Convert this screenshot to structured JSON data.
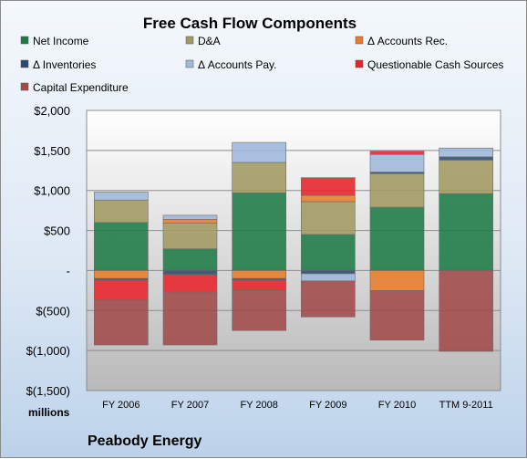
{
  "chart_data": {
    "type": "bar",
    "stacked": true,
    "title": "Free Cash Flow Components",
    "unit_label": "millions",
    "company": "Peabody Energy",
    "categories": [
      "FY 2006",
      "FY 2007",
      "FY 2008",
      "FY 2009",
      "FY 2010",
      "TTM 9-2011"
    ],
    "y_tick_labels": [
      "$2,000",
      "$1,500",
      "$1,000",
      "$500",
      "-",
      "$(500)",
      "$(1,000)",
      "$(1,500)"
    ],
    "y_tick_values": [
      2000,
      1500,
      1000,
      500,
      0,
      -500,
      -1000,
      -1500
    ],
    "ylim": [
      -1500,
      2000
    ],
    "grid": true,
    "legend_position": "top",
    "series": [
      {
        "name": "Net Income",
        "color": "#1e7a47",
        "values": [
          600,
          270,
          970,
          450,
          790,
          960
        ]
      },
      {
        "name": "D&A",
        "color": "#a09a62",
        "values": [
          280,
          320,
          380,
          410,
          420,
          420
        ]
      },
      {
        "name": "Δ Accounts Rec.",
        "color": "#e87c2a",
        "values": [
          -100,
          50,
          -100,
          80,
          -250,
          0
        ]
      },
      {
        "name": "Δ Inventories",
        "color": "#2c4a6e",
        "values": [
          -20,
          -50,
          -20,
          -40,
          20,
          40
        ]
      },
      {
        "name": "Δ Accounts Pay.",
        "color": "#9db8da",
        "values": [
          100,
          50,
          250,
          -90,
          220,
          110
        ]
      },
      {
        "name": "Questionable Cash Sources",
        "color": "#e8232a",
        "values": [
          -250,
          -220,
          -130,
          220,
          40,
          0
        ]
      },
      {
        "name": "Capital Expenditure",
        "color": "#a14a4a",
        "values": [
          -560,
          -660,
          -500,
          -450,
          -620,
          -1010
        ]
      }
    ]
  }
}
